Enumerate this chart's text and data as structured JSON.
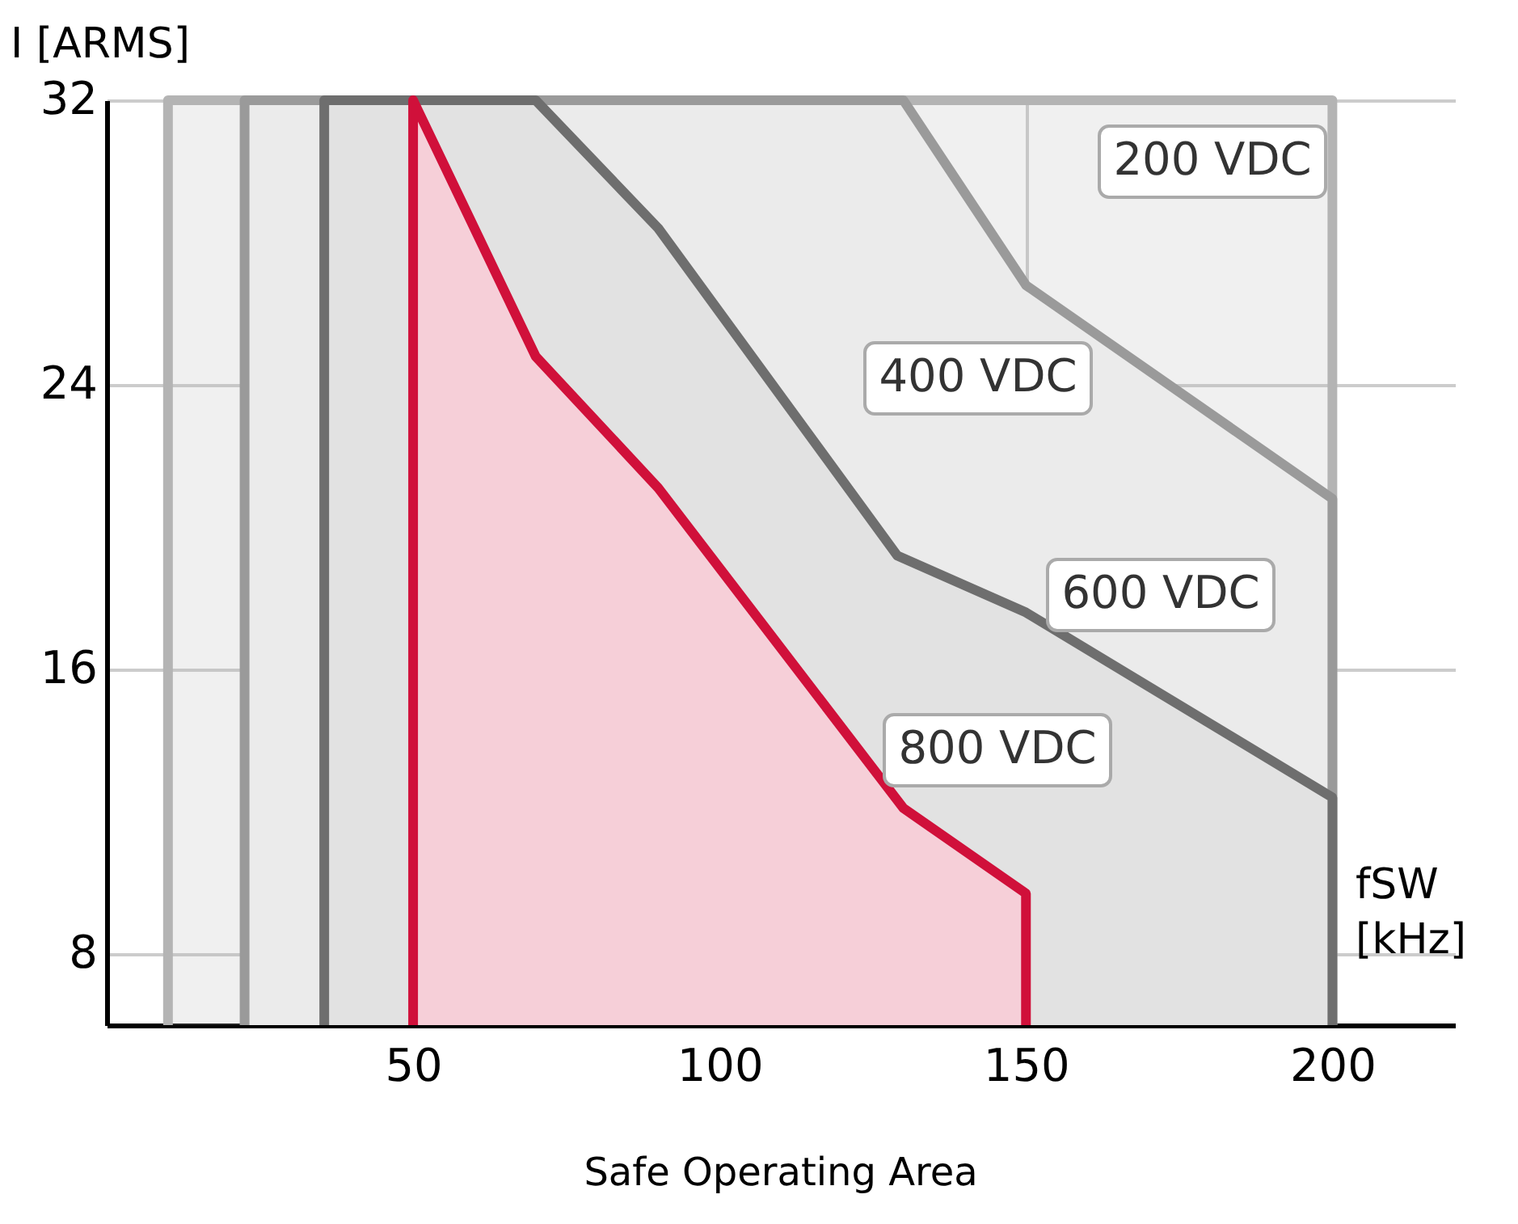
{
  "chart_data": {
    "type": "area",
    "title": "Safe Operating Area",
    "xlabel": "fSW [kHz]",
    "ylabel": "I [ARMS]",
    "xlim": [
      0,
      220
    ],
    "xticks": [
      50,
      100,
      150,
      200
    ],
    "ylim": [
      6,
      32
    ],
    "yticks": [
      8,
      16,
      24,
      32
    ],
    "grid": true,
    "series": [
      {
        "x": [
          10,
          200
        ],
        "values": [
          32,
          32
        ],
        "color": "#b4b4b4"
      },
      {
        "x": [
          22.5,
          130,
          150,
          200
        ],
        "values": [
          32,
          32,
          26.8,
          20.8
        ],
        "color": "#9a9a9a"
      },
      {
        "x": [
          35.5,
          70,
          90,
          129,
          150,
          200
        ],
        "values": [
          32,
          32,
          28.4,
          19.2,
          17.6,
          12.4
        ],
        "color": "#6e6e6e"
      },
      {
        "x": [
          50,
          70,
          90,
          130,
          150
        ],
        "values": [
          32,
          24.8,
          21.1,
          12.1,
          9.7
        ],
        "color": "#d0103a"
      }
    ],
    "annotations": [
      "200 VDC",
      "400 VDC",
      "600 VDC",
      "800 VDC"
    ]
  }
}
